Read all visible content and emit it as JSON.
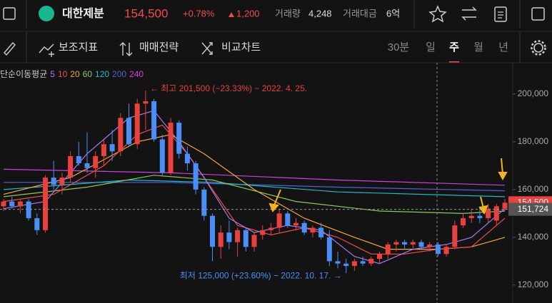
{
  "header": {
    "name": "대한제분",
    "price": "154,500",
    "change_pct": "+0.78%",
    "change": "1,200",
    "volume_label": "거래량",
    "volume": "4,248",
    "amount_label": "거래대금",
    "amount": "6억"
  },
  "toolbar": {
    "tools": [
      "보조지표",
      "매매전략",
      "비교차트"
    ],
    "periods": [
      "30분",
      "일",
      "주",
      "월",
      "년"
    ],
    "selected_period": 2
  },
  "chart_data": {
    "type": "candlestick",
    "ma_title": "단순이동평균",
    "up_color": "#e8413e",
    "down_color": "#4b8ef7",
    "open": [
      153000,
      155000,
      153000,
      155000,
      148000,
      143000,
      165000,
      162000,
      165000,
      174000,
      171000,
      169000,
      174000,
      179000,
      176000,
      190000,
      179000,
      196000,
      197000,
      181000,
      167000,
      188000,
      175000,
      171000,
      160000,
      149000,
      136000,
      142000,
      138000,
      143000,
      136000,
      141000,
      143000,
      144000,
      150000,
      145000,
      146000,
      142000,
      144000,
      140000,
      130000,
      129000,
      128000,
      130000,
      129000,
      131000,
      133000,
      137000,
      138000,
      137000,
      138000,
      136000,
      137000,
      133000,
      136000,
      145000,
      148000,
      149000,
      148000,
      147000,
      152000
    ],
    "high": [
      156000,
      157000,
      156000,
      156000,
      150000,
      166000,
      172000,
      167000,
      176000,
      180000,
      184000,
      176000,
      181000,
      185000,
      192000,
      196000,
      198000,
      201500,
      198000,
      183000,
      190000,
      189000,
      178000,
      172000,
      161000,
      150000,
      145000,
      147000,
      144000,
      144000,
      142000,
      145000,
      146000,
      152000,
      151000,
      148000,
      147000,
      145000,
      146000,
      143000,
      134000,
      131000,
      131000,
      132000,
      132000,
      134000,
      138000,
      139000,
      139000,
      139000,
      139000,
      138000,
      138000,
      137000,
      147000,
      150000,
      152000,
      153000,
      154000,
      154000,
      156000
    ],
    "low": [
      151000,
      152000,
      150000,
      147000,
      141000,
      142000,
      160000,
      158000,
      163000,
      170000,
      167000,
      165000,
      170000,
      172000,
      174000,
      178000,
      177000,
      185000,
      180000,
      166000,
      166000,
      173000,
      168000,
      158000,
      147000,
      130000,
      131000,
      135000,
      132000,
      134000,
      134000,
      139000,
      141000,
      142000,
      144000,
      143000,
      141000,
      140000,
      139000,
      128000,
      127000,
      125000,
      126000,
      128000,
      128000,
      129000,
      131000,
      134000,
      135000,
      135000,
      135000,
      134000,
      132000,
      132000,
      135000,
      144000,
      146000,
      146000,
      146000,
      145000,
      151000
    ],
    "close": [
      155000,
      153000,
      155000,
      148000,
      143000,
      165000,
      162000,
      165000,
      174000,
      171000,
      169000,
      174000,
      179000,
      176000,
      190000,
      179000,
      196000,
      197000,
      181000,
      167000,
      188000,
      175000,
      171000,
      160000,
      149000,
      136000,
      142000,
      138000,
      143000,
      136000,
      141000,
      143000,
      144000,
      150000,
      145000,
      146000,
      142000,
      144000,
      140000,
      130000,
      129000,
      128000,
      130000,
      129000,
      131000,
      133000,
      137000,
      138000,
      137000,
      138000,
      136000,
      137000,
      133000,
      136000,
      145000,
      148000,
      149000,
      148000,
      152000,
      153000,
      154500
    ],
    "ma": [
      {
        "name": "5",
        "color": "#a779f0",
        "x": [
          0,
          5,
          10,
          15,
          18,
          21,
          24,
          27,
          30,
          34,
          38,
          42,
          45,
          49,
          53,
          56,
          60
        ],
        "values": [
          152000,
          155000,
          175000,
          190000,
          193000,
          180000,
          165000,
          148000,
          142000,
          145000,
          143000,
          132000,
          129000,
          135000,
          137000,
          140000,
          152000
        ]
      },
      {
        "name": "10",
        "color": "#ef4d4d",
        "x": [
          0,
          6,
          12,
          16,
          19,
          22,
          25,
          28,
          32,
          36,
          40,
          44,
          48,
          52,
          56,
          60
        ],
        "values": [
          155000,
          158000,
          170000,
          183000,
          187000,
          175000,
          160000,
          145000,
          141000,
          144000,
          140000,
          133000,
          133000,
          135000,
          136000,
          148000
        ]
      },
      {
        "name": "20",
        "color": "#f2a93b",
        "x": [
          0,
          8,
          16,
          20,
          24,
          30,
          36,
          42,
          46,
          52,
          56,
          60
        ],
        "values": [
          158000,
          165000,
          180000,
          183000,
          175000,
          160000,
          148000,
          140000,
          135000,
          135000,
          136000,
          140000
        ]
      },
      {
        "name": "60",
        "color": "#8fc75a",
        "x": [
          0,
          10,
          18,
          25,
          35,
          45,
          55,
          60
        ],
        "values": [
          157000,
          161000,
          166000,
          164000,
          155000,
          151000,
          150000,
          151000
        ]
      },
      {
        "name": "120",
        "color": "#22b8c9",
        "x": [
          0,
          15,
          25,
          40,
          60
        ],
        "values": [
          160000,
          164000,
          163000,
          159000,
          157000
        ]
      },
      {
        "name": "200",
        "color": "#4f63d6",
        "x": [
          0,
          20,
          40,
          60
        ],
        "values": [
          163000,
          163000,
          161000,
          159500
        ]
      },
      {
        "name": "240",
        "color": "#d13ee0",
        "x": [
          0,
          20,
          40,
          60
        ],
        "values": [
          168500,
          167000,
          164000,
          161800
        ]
      }
    ],
    "ylim": [
      112500,
      212500
    ],
    "yticks": [
      {
        "value": 120000,
        "label": "120,000"
      },
      {
        "value": 140000,
        "label": "140,000"
      },
      {
        "value": 160000,
        "label": "160,000"
      },
      {
        "value": 180000,
        "label": "180,000"
      },
      {
        "value": 200000,
        "label": "200,000"
      }
    ],
    "annotations": [
      {
        "text": "← 최고 201,500 (−23.33%) − 2022. 4. 25.",
        "color": "#e8413e",
        "x": 17,
        "y": 201500,
        "side": "right"
      },
      {
        "text": "최저 125,000 (+23.60%) − 2022. 10. 17. →",
        "color": "#4b8ef7",
        "x": 41,
        "y": 125000,
        "side": "left"
      }
    ],
    "price_tags": [
      {
        "value": 154500,
        "label": "154,500",
        "color": "#e8413e"
      },
      {
        "value": 151724,
        "label": "151,724",
        "color": "#555"
      }
    ]
  }
}
